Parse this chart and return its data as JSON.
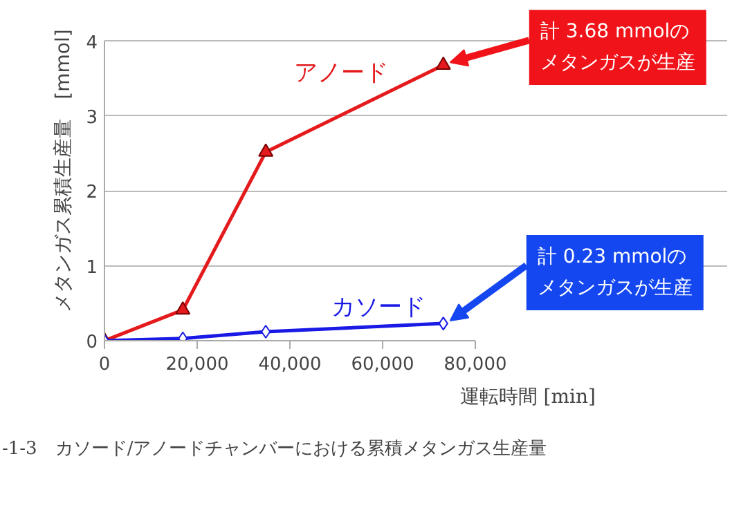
{
  "chart_data": {
    "type": "line",
    "x": [
      0,
      16900,
      34800,
      73100
    ],
    "series": [
      {
        "name": "アノード",
        "color": "#e41a1c",
        "marker": "triangle",
        "values": [
          0,
          0.41,
          2.52,
          3.68
        ]
      },
      {
        "name": "カソード",
        "color": "#1a1ae6",
        "marker": "diamond",
        "values": [
          0,
          0.03,
          0.12,
          0.23
        ]
      }
    ],
    "xlim": [
      0,
      80000
    ],
    "xticks": [
      {
        "value": 0,
        "label": "0"
      },
      {
        "value": 20000,
        "label": "20,000"
      },
      {
        "value": 40000,
        "label": "40,000"
      },
      {
        "value": 60000,
        "label": "60,000"
      },
      {
        "value": 80000,
        "label": "80,000"
      }
    ],
    "ylim": [
      0,
      4
    ],
    "yticks": [
      0,
      1,
      2,
      3,
      4
    ],
    "ylabel": "メタンガス累積生産量　[mmol]",
    "xlabel": "運転時間 [min]",
    "title": "-1-3　カソード/アノードチャンバーにおける累積メタンガス生産量",
    "annotations": [
      {
        "text": "計 3.68 mmolのメタンガスが生産",
        "x": 73100,
        "y": 3.68
      },
      {
        "text": "計 0.23 mmolのメタンガスが生産",
        "x": 73100,
        "y": 0.23
      }
    ],
    "grid": "y",
    "line_style": "solid"
  }
}
